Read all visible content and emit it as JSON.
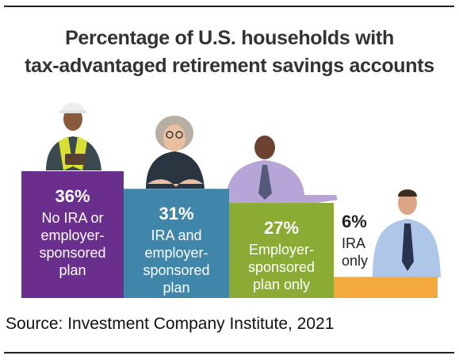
{
  "chart_data": {
    "type": "bar",
    "title_lines": [
      "Percentage of U.S. households with",
      "tax-advantaged retirement savings accounts"
    ],
    "categories": [
      "No IRA or employer-sponsored plan",
      "IRA and employer-sponsored plan",
      "Employer-sponsored plan only",
      "IRA only"
    ],
    "values": [
      36,
      31,
      27,
      6
    ],
    "unit": "%",
    "value_labels": [
      "36%",
      "31%",
      "27%",
      "6%"
    ],
    "category_label_lines": [
      [
        "No IRA or",
        "employer-",
        "sponsored",
        "plan"
      ],
      [
        "IRA and",
        "employer-",
        "sponsored",
        "plan"
      ],
      [
        "Employer-",
        "sponsored",
        "plan only"
      ],
      [
        "IRA",
        "only"
      ]
    ],
    "colors": [
      "#6a2f8c",
      "#3f86aa",
      "#8bab35",
      "#f4a93c"
    ],
    "grid": false,
    "legend": "none"
  },
  "source": "Source: Investment Company Institute, 2021"
}
